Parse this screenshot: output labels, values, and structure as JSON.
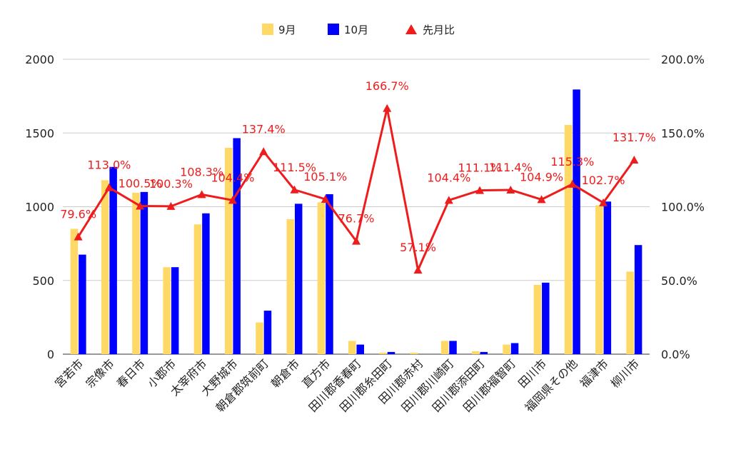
{
  "chart_data": {
    "type": "bar",
    "combo": "bar+line",
    "categories": [
      "宮若市",
      "宗像市",
      "春日市",
      "小郡市",
      "太宰府市",
      "大野城市",
      "朝倉郡筑前町",
      "朝倉市",
      "直方市",
      "田川郡香春町",
      "田川郡糸田町",
      "田川郡赤村",
      "田川郡川崎町",
      "田川郡添田町",
      "田川郡福智町",
      "田川市",
      "福岡県その他",
      "福津市",
      "柳川市"
    ],
    "series": [
      {
        "name": "9月",
        "axis": "left",
        "color": "#ffd966",
        "values": [
          850,
          1180,
          1095,
          590,
          880,
          1400,
          215,
          915,
          1030,
          90,
          10,
          10,
          90,
          20,
          65,
          470,
          1555,
          1010,
          560
        ]
      },
      {
        "name": "10月",
        "axis": "left",
        "color": "#0000ff",
        "values": [
          675,
          1270,
          1100,
          590,
          955,
          1465,
          295,
          1020,
          1085,
          65,
          15,
          0,
          90,
          15,
          75,
          485,
          1795,
          1035,
          740
        ]
      },
      {
        "name": "先月比",
        "axis": "right",
        "type": "line",
        "color": "#ee1c1c",
        "unit": "%",
        "values": [
          79.6,
          113.0,
          100.5,
          100.3,
          108.3,
          104.4,
          137.4,
          111.5,
          105.1,
          76.7,
          166.7,
          57.1,
          104.4,
          111.1,
          111.4,
          104.9,
          115.3,
          102.7,
          131.7
        ],
        "labels": [
          "79.6%",
          "113.0%",
          "100.5%",
          "100.3%",
          "108.3%",
          "104.4%",
          "137.4%",
          "111.5%",
          "105.1%",
          "76.7%",
          "166.7%",
          "57.1%",
          "104.4%",
          "111.1%",
          "111.4%",
          "104.9%",
          "115.3%",
          "102.7%",
          "131.7%"
        ]
      }
    ],
    "y_left": {
      "min": 0,
      "max": 2000,
      "ticks": [
        0,
        500,
        1000,
        1500,
        2000
      ],
      "tick_labels": [
        "0",
        "500",
        "1000",
        "1500",
        "2000"
      ]
    },
    "y_right": {
      "min": 0,
      "max": 200,
      "ticks": [
        0,
        50,
        100,
        150,
        200
      ],
      "tick_labels": [
        "0.0%",
        "50.0%",
        "100.0%",
        "150.0%",
        "200.0%"
      ]
    },
    "legend": {
      "position": "top",
      "entries": [
        "9月",
        "10月",
        "先月比"
      ]
    },
    "grid": true
  }
}
